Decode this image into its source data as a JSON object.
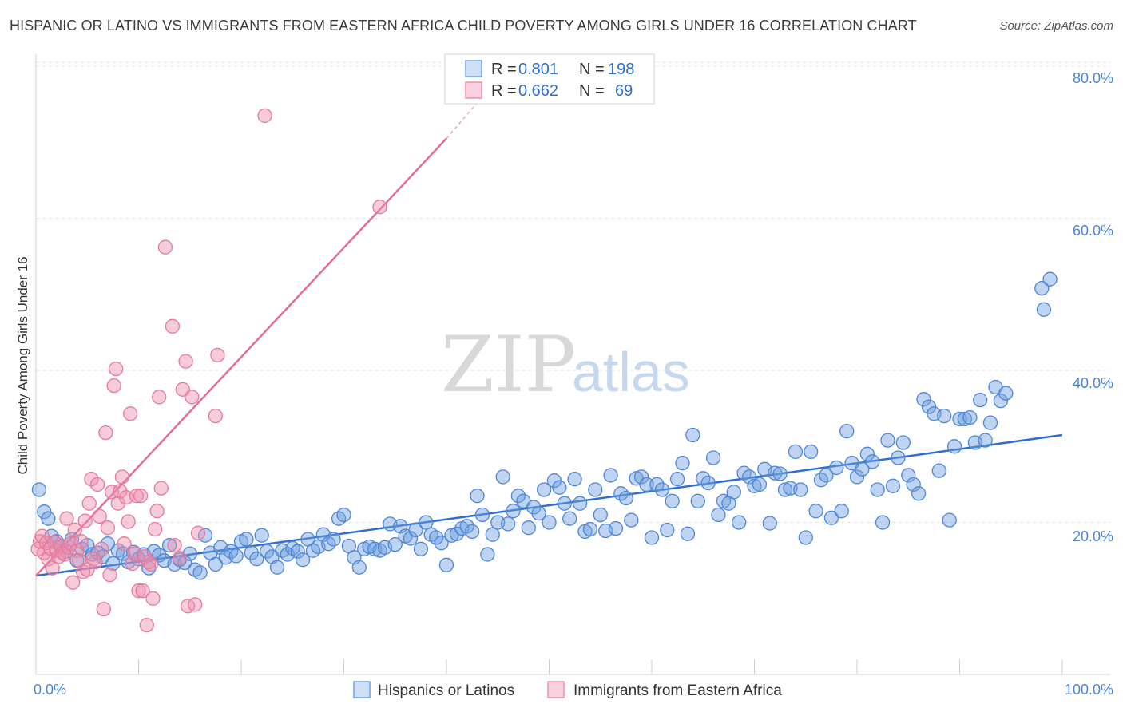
{
  "header": {
    "title": "HISPANIC OR LATINO VS IMMIGRANTS FROM EASTERN AFRICA CHILD POVERTY AMONG GIRLS UNDER 16 CORRELATION CHART",
    "source": "Source: ZipAtlas.com"
  },
  "watermark": {
    "zip": "ZIP",
    "atlas": "atlas"
  },
  "legend": {
    "r_label": "R =",
    "n_label": "N =",
    "rows": [
      {
        "r": "0.801",
        "n": "198",
        "color": "#6fa0e0"
      },
      {
        "r": "0.662",
        "n": "69",
        "color": "#ee8fad"
      }
    ]
  },
  "bottom_legend": {
    "items": [
      {
        "label": "Hispanics or Latinos",
        "color": "#6fa0e0"
      },
      {
        "label": "Immigrants from Eastern Africa",
        "color": "#ee8fad"
      }
    ]
  },
  "chart_data": {
    "type": "scatter",
    "title": "HISPANIC OR LATINO VS IMMIGRANTS FROM EASTERN AFRICA CHILD POVERTY AMONG GIRLS UNDER 16 CORRELATION CHART",
    "xlabel": "",
    "ylabel": "Child Poverty Among Girls Under 16",
    "xlim": [
      0,
      100
    ],
    "ylim": [
      0,
      85
    ],
    "x_tick_labels": [
      "0.0%",
      "100.0%"
    ],
    "y_tick_labels": [
      "20.0%",
      "40.0%",
      "60.0%",
      "80.0%"
    ],
    "y_ticks": [
      20,
      40,
      60,
      80
    ],
    "grid": "horizontal dashed",
    "legend_position": "top-center",
    "series": [
      {
        "name": "Hispanics or Latinos",
        "color": "#6fa0e0",
        "stroke": "#4f86d6",
        "trend": {
          "x": [
            0,
            100
          ],
          "y": [
            13.0,
            31.5
          ]
        },
        "points": [
          [
            0.3,
            24.3
          ],
          [
            0.8,
            21.4
          ],
          [
            1.2,
            20.5
          ],
          [
            1.5,
            18.2
          ],
          [
            2.0,
            17.5
          ],
          [
            2.5,
            16.8
          ],
          [
            3.0,
            16.2
          ],
          [
            3.5,
            17.8
          ],
          [
            4.0,
            15.0
          ],
          [
            4.5,
            16.5
          ],
          [
            5.0,
            17.0
          ],
          [
            5.5,
            15.8
          ],
          [
            6.0,
            16.0
          ],
          [
            6.5,
            15.5
          ],
          [
            7.0,
            17.2
          ],
          [
            7.5,
            14.6
          ],
          [
            8.0,
            16.3
          ],
          [
            8.5,
            15.9
          ],
          [
            9.0,
            14.8
          ],
          [
            9.5,
            16.1
          ],
          [
            10.0,
            15.2
          ],
          [
            10.5,
            15.8
          ],
          [
            11.0,
            14.0
          ],
          [
            11.5,
            16.2
          ],
          [
            12.0,
            15.7
          ],
          [
            12.5,
            15.0
          ],
          [
            13.0,
            17.0
          ],
          [
            13.5,
            14.5
          ],
          [
            14.0,
            15.1
          ],
          [
            14.5,
            14.7
          ],
          [
            15.0,
            15.9
          ],
          [
            15.5,
            13.8
          ],
          [
            16.0,
            13.4
          ],
          [
            16.5,
            18.3
          ],
          [
            17.0,
            16.0
          ],
          [
            17.5,
            14.5
          ],
          [
            18.0,
            16.7
          ],
          [
            18.5,
            15.4
          ],
          [
            19.0,
            16.2
          ],
          [
            19.5,
            15.6
          ],
          [
            20.0,
            17.5
          ],
          [
            20.5,
            17.8
          ],
          [
            21.0,
            16.0
          ],
          [
            21.5,
            15.2
          ],
          [
            22.0,
            18.3
          ],
          [
            22.5,
            16.2
          ],
          [
            23.0,
            15.5
          ],
          [
            23.5,
            14.1
          ],
          [
            24.0,
            16.3
          ],
          [
            24.5,
            15.8
          ],
          [
            25.0,
            16.6
          ],
          [
            25.5,
            16.2
          ],
          [
            26.0,
            15.1
          ],
          [
            26.5,
            17.8
          ],
          [
            27.0,
            16.3
          ],
          [
            27.5,
            16.8
          ],
          [
            28.0,
            18.4
          ],
          [
            28.5,
            17.2
          ],
          [
            29.0,
            17.8
          ],
          [
            29.5,
            20.5
          ],
          [
            30.0,
            21.0
          ],
          [
            30.5,
            16.9
          ],
          [
            31.0,
            15.4
          ],
          [
            31.5,
            14.1
          ],
          [
            32.0,
            16.5
          ],
          [
            32.5,
            16.8
          ],
          [
            33.0,
            16.5
          ],
          [
            33.5,
            16.3
          ],
          [
            34.0,
            16.7
          ],
          [
            34.5,
            19.8
          ],
          [
            35.0,
            17.1
          ],
          [
            35.5,
            19.5
          ],
          [
            36.0,
            18.2
          ],
          [
            36.5,
            17.9
          ],
          [
            37.0,
            19.0
          ],
          [
            37.5,
            16.5
          ],
          [
            38.0,
            20.0
          ],
          [
            38.5,
            18.4
          ],
          [
            39.0,
            18.0
          ],
          [
            39.5,
            17.3
          ],
          [
            40.0,
            14.4
          ],
          [
            40.5,
            18.3
          ],
          [
            41.0,
            18.5
          ],
          [
            41.5,
            19.2
          ],
          [
            42.0,
            19.5
          ],
          [
            42.5,
            18.8
          ],
          [
            43.0,
            23.5
          ],
          [
            43.5,
            21.0
          ],
          [
            44.0,
            15.8
          ],
          [
            44.5,
            18.4
          ],
          [
            45.0,
            20.0
          ],
          [
            45.5,
            26.0
          ],
          [
            46.0,
            19.8
          ],
          [
            46.5,
            21.5
          ],
          [
            47.0,
            23.5
          ],
          [
            47.5,
            22.8
          ],
          [
            48.0,
            19.3
          ],
          [
            48.5,
            22.0
          ],
          [
            49.0,
            21.2
          ],
          [
            49.5,
            24.3
          ],
          [
            50.0,
            20.0
          ],
          [
            50.5,
            25.5
          ],
          [
            51.0,
            24.6
          ],
          [
            51.5,
            22.5
          ],
          [
            52.0,
            20.5
          ],
          [
            52.5,
            25.7
          ],
          [
            53.0,
            22.5
          ],
          [
            53.5,
            18.8
          ],
          [
            54.0,
            19.1
          ],
          [
            54.5,
            24.3
          ],
          [
            55.0,
            21.0
          ],
          [
            55.5,
            18.9
          ],
          [
            56.0,
            26.2
          ],
          [
            56.5,
            19.2
          ],
          [
            57.0,
            23.8
          ],
          [
            57.5,
            23.2
          ],
          [
            58.0,
            20.3
          ],
          [
            58.5,
            25.8
          ],
          [
            59.0,
            26.0
          ],
          [
            59.5,
            25.0
          ],
          [
            60.0,
            18.0
          ],
          [
            60.5,
            25.0
          ],
          [
            61.0,
            24.3
          ],
          [
            61.5,
            19.0
          ],
          [
            62.0,
            22.8
          ],
          [
            62.5,
            25.7
          ],
          [
            63.0,
            27.8
          ],
          [
            63.5,
            18.5
          ],
          [
            64.0,
            31.5
          ],
          [
            64.5,
            22.8
          ],
          [
            65.0,
            25.8
          ],
          [
            65.5,
            25.2
          ],
          [
            66.0,
            28.5
          ],
          [
            66.5,
            21.0
          ],
          [
            67.0,
            22.8
          ],
          [
            67.5,
            22.5
          ],
          [
            68.0,
            24.0
          ],
          [
            68.5,
            20.0
          ],
          [
            69.0,
            26.5
          ],
          [
            69.5,
            26.0
          ],
          [
            70.0,
            24.8
          ],
          [
            70.5,
            25.0
          ],
          [
            71.0,
            27.0
          ],
          [
            71.5,
            19.9
          ],
          [
            72.0,
            26.5
          ],
          [
            72.5,
            26.4
          ],
          [
            73.0,
            24.3
          ],
          [
            73.5,
            24.5
          ],
          [
            74.0,
            29.3
          ],
          [
            74.5,
            24.3
          ],
          [
            75.0,
            18.0
          ],
          [
            75.5,
            29.3
          ],
          [
            76.0,
            21.5
          ],
          [
            76.5,
            25.6
          ],
          [
            77.0,
            26.2
          ],
          [
            77.5,
            20.6
          ],
          [
            78.0,
            27.2
          ],
          [
            78.5,
            21.5
          ],
          [
            79.0,
            32.0
          ],
          [
            79.5,
            27.8
          ],
          [
            80.0,
            26.0
          ],
          [
            80.5,
            27.0
          ],
          [
            81.0,
            29.0
          ],
          [
            81.5,
            28.0
          ],
          [
            82.0,
            24.3
          ],
          [
            82.5,
            20.0
          ],
          [
            83.0,
            30.8
          ],
          [
            83.5,
            24.8
          ],
          [
            84.0,
            28.5
          ],
          [
            84.5,
            30.5
          ],
          [
            85.0,
            26.2
          ],
          [
            85.5,
            25.0
          ],
          [
            86.0,
            23.8
          ],
          [
            86.5,
            36.2
          ],
          [
            87.0,
            35.2
          ],
          [
            87.5,
            34.3
          ],
          [
            88.0,
            26.8
          ],
          [
            88.5,
            34.0
          ],
          [
            89.0,
            20.3
          ],
          [
            89.5,
            30.0
          ],
          [
            90.0,
            33.6
          ],
          [
            90.5,
            33.6
          ],
          [
            91.0,
            33.8
          ],
          [
            91.5,
            30.5
          ],
          [
            92.0,
            36.1
          ],
          [
            92.5,
            30.8
          ],
          [
            93.0,
            33.1
          ],
          [
            93.5,
            37.8
          ],
          [
            94.0,
            36.0
          ],
          [
            94.5,
            37.0
          ],
          [
            98.0,
            50.8
          ],
          [
            98.2,
            48.0
          ],
          [
            98.8,
            52.0
          ]
        ]
      },
      {
        "name": "Immigrants from Eastern Africa",
        "color": "#ee8fad",
        "stroke": "#e57a9c",
        "trend": {
          "x": [
            0,
            40
          ],
          "y": [
            13.0,
            70.5
          ]
        },
        "trend_dashed": {
          "x": [
            40,
            43.5
          ],
          "y": [
            70.5,
            76.0
          ]
        },
        "points": [
          [
            0.2,
            16.5
          ],
          [
            0.4,
            17.5
          ],
          [
            0.6,
            18.2
          ],
          [
            0.8,
            16.0
          ],
          [
            1.0,
            17.3
          ],
          [
            1.2,
            15.2
          ],
          [
            1.4,
            16.6
          ],
          [
            1.6,
            14.0
          ],
          [
            1.8,
            17.4
          ],
          [
            2.0,
            16.3
          ],
          [
            2.2,
            15.5
          ],
          [
            2.4,
            17.0
          ],
          [
            2.6,
            16.0
          ],
          [
            2.8,
            15.8
          ],
          [
            3.0,
            20.5
          ],
          [
            3.2,
            16.7
          ],
          [
            3.4,
            17.2
          ],
          [
            3.6,
            12.1
          ],
          [
            3.8,
            19.0
          ],
          [
            4.0,
            16.3
          ],
          [
            4.2,
            15.0
          ],
          [
            4.4,
            17.5
          ],
          [
            4.6,
            13.5
          ],
          [
            4.8,
            20.2
          ],
          [
            5.0,
            13.8
          ],
          [
            5.2,
            22.5
          ],
          [
            5.4,
            25.7
          ],
          [
            5.6,
            15.2
          ],
          [
            5.8,
            14.8
          ],
          [
            6.0,
            25.0
          ],
          [
            6.2,
            20.8
          ],
          [
            6.4,
            16.5
          ],
          [
            6.6,
            8.6
          ],
          [
            6.8,
            31.8
          ],
          [
            7.0,
            19.3
          ],
          [
            7.2,
            13.1
          ],
          [
            7.4,
            24.0
          ],
          [
            7.6,
            38.0
          ],
          [
            7.8,
            40.2
          ],
          [
            8.0,
            22.5
          ],
          [
            8.2,
            24.1
          ],
          [
            8.4,
            26.0
          ],
          [
            8.6,
            17.2
          ],
          [
            8.8,
            23.3
          ],
          [
            9.0,
            20.1
          ],
          [
            9.2,
            34.3
          ],
          [
            9.4,
            14.6
          ],
          [
            9.6,
            15.9
          ],
          [
            9.8,
            23.5
          ],
          [
            10.0,
            11.0
          ],
          [
            10.2,
            23.5
          ],
          [
            10.4,
            11.0
          ],
          [
            10.6,
            15.5
          ],
          [
            10.8,
            6.5
          ],
          [
            11.0,
            14.8
          ],
          [
            11.2,
            14.5
          ],
          [
            11.4,
            10.0
          ],
          [
            11.6,
            19.1
          ],
          [
            11.8,
            21.5
          ],
          [
            12.0,
            36.5
          ],
          [
            12.2,
            24.5
          ],
          [
            12.6,
            56.2
          ],
          [
            13.3,
            45.8
          ],
          [
            13.5,
            17.0
          ],
          [
            14.0,
            15.3
          ],
          [
            14.3,
            37.5
          ],
          [
            14.8,
            9.0
          ],
          [
            15.2,
            36.5
          ],
          [
            15.5,
            9.2
          ],
          [
            14.6,
            41.2
          ],
          [
            15.8,
            18.6
          ],
          [
            17.5,
            34.0
          ],
          [
            17.7,
            42.0
          ],
          [
            22.3,
            73.5
          ],
          [
            33.5,
            61.5
          ]
        ]
      }
    ]
  }
}
